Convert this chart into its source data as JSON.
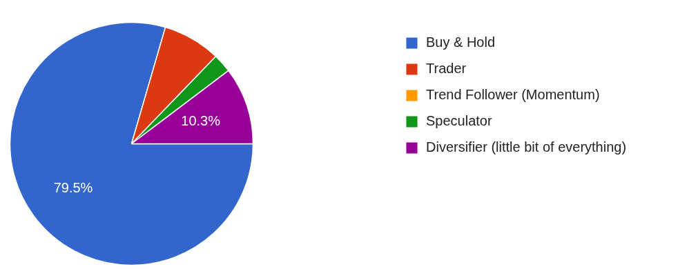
{
  "chart_data": {
    "type": "pie",
    "categories": [
      "Buy & Hold",
      "Trader",
      "Trend Follower (Momentum)",
      "Speculator",
      "Diversifier (little bit of everything)"
    ],
    "values": [
      79.5,
      7.7,
      0,
      2.5,
      10.3
    ],
    "colors": [
      "#3366cc",
      "#dc3912",
      "#ff9900",
      "#109618",
      "#990099"
    ],
    "value_labels": [
      "79.5%",
      null,
      null,
      null,
      "10.3%"
    ],
    "legend": "right"
  }
}
